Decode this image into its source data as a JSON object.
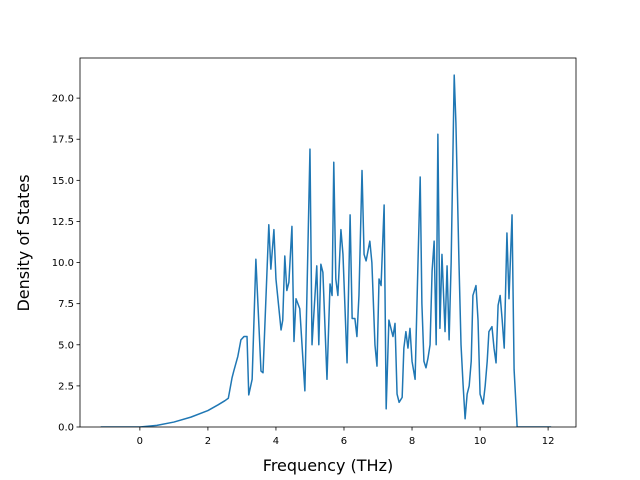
{
  "chart_data": {
    "type": "line",
    "x_label": "Frequency (THz)",
    "y_label": "Density of States",
    "xlim": [
      -1.76,
      12.82
    ],
    "ylim": [
      0,
      22.44
    ],
    "xticks": [
      0,
      2,
      4,
      6,
      8,
      10,
      12
    ],
    "yticks": [
      {
        "value": 0,
        "label": "0.0"
      },
      {
        "value": 2.5,
        "label": "2.5"
      },
      {
        "value": 5,
        "label": "5.0"
      },
      {
        "value": 7.5,
        "label": "7.5"
      },
      {
        "value": 10,
        "label": "10.0"
      },
      {
        "value": 12.5,
        "label": "12.5"
      },
      {
        "value": 15,
        "label": "15.0"
      },
      {
        "value": 17.5,
        "label": "17.5"
      },
      {
        "value": 20,
        "label": "20.0"
      }
    ],
    "grid": false,
    "x": [
      -1.15,
      -0.5,
      0,
      0.5,
      1.0,
      1.5,
      2.0,
      2.3,
      2.5,
      2.6,
      2.71,
      2.76,
      2.88,
      2.97,
      3.06,
      3.15,
      3.2,
      3.3,
      3.41,
      3.56,
      3.62,
      3.79,
      3.85,
      3.94,
      4.0,
      4.15,
      4.2,
      4.26,
      4.32,
      4.38,
      4.47,
      4.53,
      4.59,
      4.7,
      4.85,
      4.91,
      5.0,
      5.06,
      5.2,
      5.26,
      5.32,
      5.38,
      5.5,
      5.59,
      5.65,
      5.7,
      5.76,
      5.82,
      5.91,
      5.97,
      6.09,
      6.18,
      6.24,
      6.32,
      6.38,
      6.44,
      6.53,
      6.59,
      6.65,
      6.76,
      6.82,
      6.91,
      6.97,
      7.03,
      7.09,
      7.18,
      7.24,
      7.32,
      7.44,
      7.5,
      7.56,
      7.62,
      7.71,
      7.76,
      7.82,
      7.88,
      7.94,
      8.0,
      8.09,
      8.18,
      8.24,
      8.29,
      8.35,
      8.41,
      8.47,
      8.53,
      8.59,
      8.65,
      8.71,
      8.76,
      8.82,
      8.88,
      8.97,
      9.03,
      9.09,
      9.15,
      9.24,
      9.29,
      9.38,
      9.44,
      9.5,
      9.56,
      9.62,
      9.68,
      9.74,
      9.79,
      9.88,
      9.94,
      10.0,
      10.09,
      10.15,
      10.21,
      10.26,
      10.35,
      10.41,
      10.47,
      10.53,
      10.59,
      10.65,
      10.71,
      10.79,
      10.85,
      10.94,
      11.0,
      11.09,
      12.09
    ],
    "series": [
      {
        "name": "DOS",
        "color": "#1f77b4",
        "values": [
          0,
          0,
          0,
          0.1,
          0.3,
          0.6,
          1.0,
          1.35,
          1.6,
          1.75,
          3.0,
          3.4,
          4.3,
          5.3,
          5.5,
          5.5,
          1.95,
          2.9,
          10.2,
          3.4,
          3.3,
          12.3,
          9.6,
          12.0,
          9.0,
          5.9,
          6.5,
          10.4,
          8.3,
          8.8,
          12.2,
          5.2,
          7.8,
          7.2,
          2.2,
          8.0,
          16.9,
          5.0,
          9.8,
          5.0,
          9.9,
          9.4,
          2.9,
          8.7,
          8.0,
          16.1,
          9.0,
          8.0,
          12.0,
          10.5,
          3.9,
          12.9,
          6.6,
          6.6,
          5.5,
          8.0,
          15.6,
          10.5,
          10.1,
          11.3,
          10.0,
          5.0,
          3.7,
          9.0,
          8.6,
          13.5,
          1.1,
          6.5,
          5.5,
          6.3,
          2.0,
          1.5,
          1.8,
          4.8,
          5.8,
          4.8,
          6.0,
          4.0,
          2.9,
          10.4,
          15.2,
          7.5,
          4.0,
          3.6,
          4.2,
          5.0,
          9.5,
          11.3,
          5.0,
          17.8,
          6.0,
          10.5,
          5.8,
          9.8,
          5.3,
          10.0,
          21.4,
          18.5,
          10.0,
          5.0,
          2.6,
          0.5,
          2.0,
          2.5,
          4.0,
          8.0,
          8.6,
          6.5,
          2.0,
          1.4,
          2.5,
          4.0,
          5.8,
          6.1,
          4.8,
          3.9,
          7.4,
          8.0,
          6.5,
          4.8,
          11.8,
          7.8,
          12.9,
          3.5,
          0,
          0
        ]
      }
    ]
  }
}
